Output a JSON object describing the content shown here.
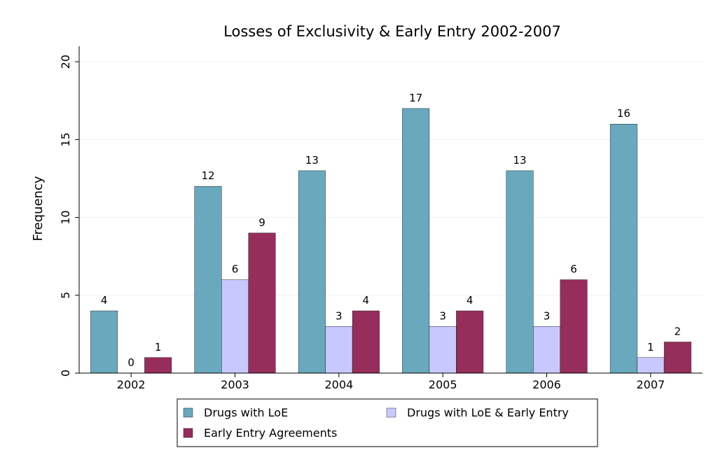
{
  "chart_data": {
    "type": "bar",
    "title": "Losses of Exclusivity & Early Entry 2002-2007",
    "xlabel": "",
    "ylabel": "Frequency",
    "ylim": [
      0,
      21
    ],
    "yticks": [
      0,
      5,
      10,
      15,
      20
    ],
    "grid": true,
    "legend_position": "bottom",
    "categories": [
      "2002",
      "2003",
      "2004",
      "2005",
      "2006",
      "2007"
    ],
    "series": [
      {
        "name": "Drugs with LoE",
        "color": "#6aa8bd",
        "values": [
          4,
          12,
          13,
          17,
          13,
          16
        ]
      },
      {
        "name": "Drugs with LoE & Early Entry",
        "color": "#c8c8ff",
        "values": [
          0,
          6,
          3,
          3,
          3,
          1
        ]
      },
      {
        "name": "Early Entry Agreements",
        "color": "#962e5c",
        "values": [
          1,
          9,
          4,
          4,
          6,
          2
        ]
      }
    ]
  }
}
